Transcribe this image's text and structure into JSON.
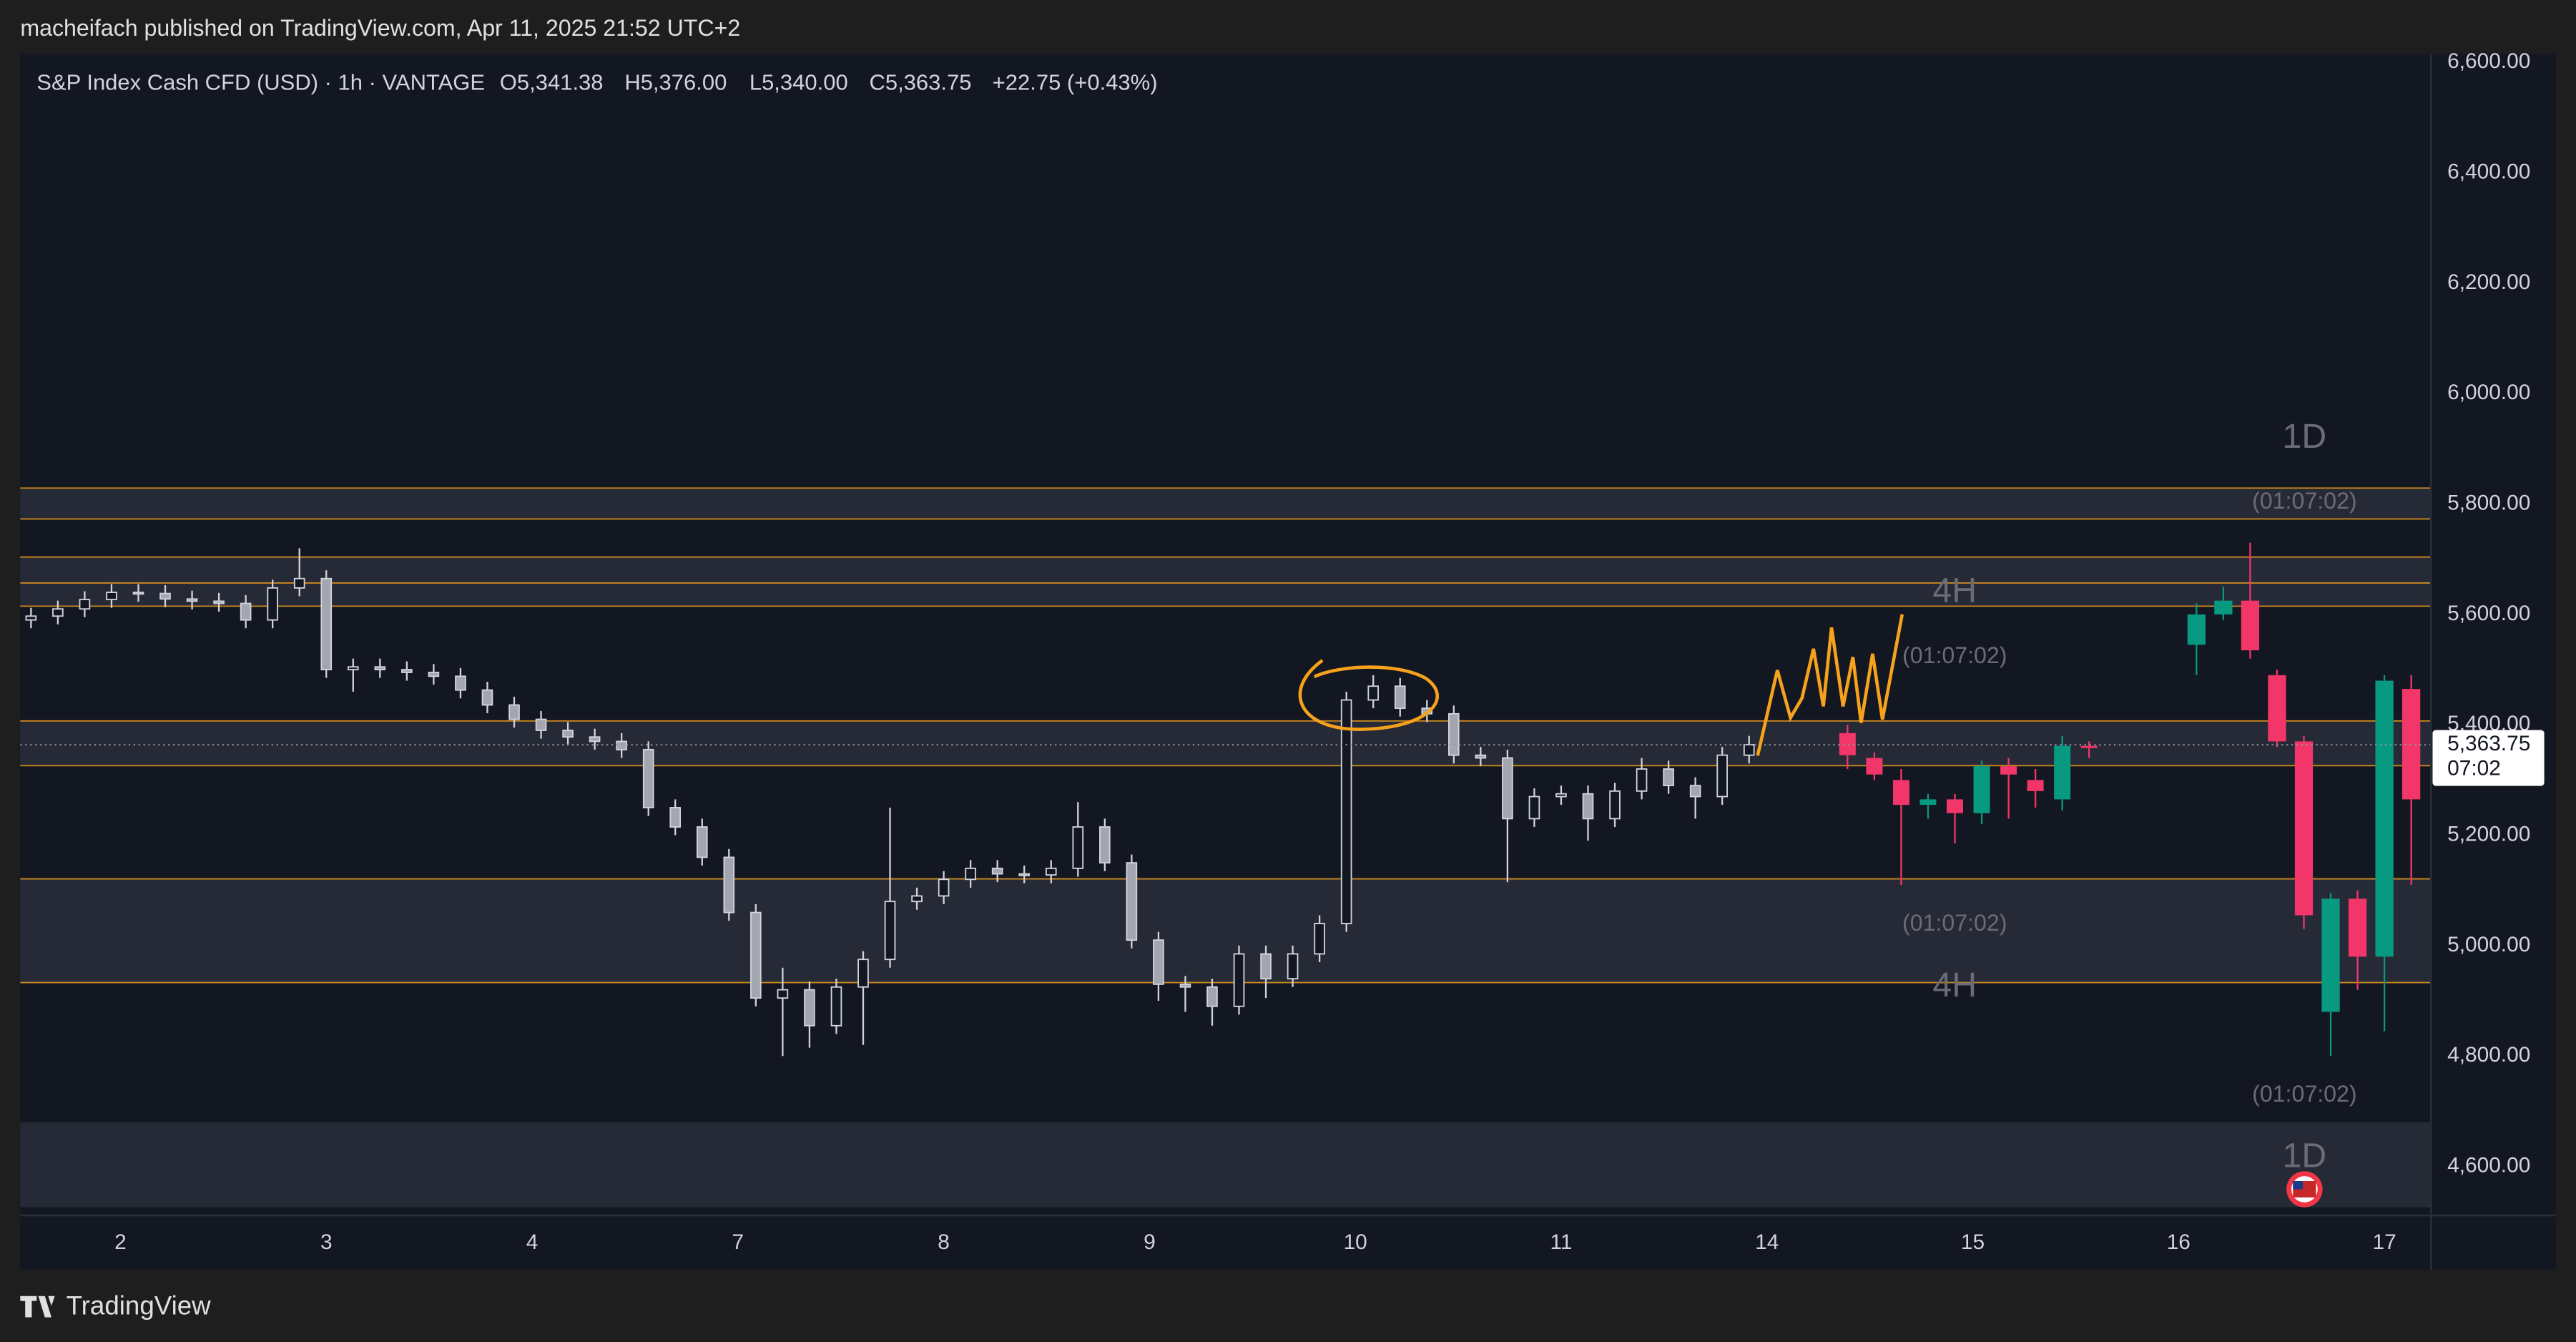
{
  "header": "macheifach published on TradingView.com, Apr 11, 2025 21:52 UTC+2",
  "footer": "TradingView",
  "chart_data": {
    "type": "candlestick",
    "symbol": "S&P Index Cash CFD (USD) · 1h · VANTAGE",
    "ohlc_labels": [
      "O5,341.38",
      "H5,376.00",
      "L5,340.00",
      "C5,363.75",
      "+22.75 (+0.43%)"
    ],
    "last_price": {
      "value": 5363.75,
      "label": "5,363.75"
    },
    "countdown": "07:02",
    "annotations": [
      "1D",
      "(01:07:02)",
      "4H",
      "(01:07:02)",
      "(01:07:02)",
      "4H",
      "(01:07:02)",
      "1D"
    ],
    "up_color": "#089981",
    "down_color": "#f23669",
    "level_color": "#f7a21b",
    "grid": false,
    "ylim": [
      4511,
      6615
    ],
    "yticks": [
      {
        "value": 4600,
        "label": "4,600.00"
      },
      {
        "value": 4800,
        "label": "4,800.00"
      },
      {
        "value": 5000,
        "label": "5,000.00"
      },
      {
        "value": 5200,
        "label": "5,200.00"
      },
      {
        "value": 5400,
        "label": "5,400.00"
      },
      {
        "value": 5600,
        "label": "5,600.00"
      },
      {
        "value": 5800,
        "label": "5,800.00"
      },
      {
        "value": 6000,
        "label": "6,000.00"
      },
      {
        "value": 6200,
        "label": "6,200.00"
      },
      {
        "value": 6400,
        "label": "6,400.00"
      },
      {
        "value": 6600,
        "label": "6,600.00"
      }
    ],
    "xlim": [
      -11.2,
      258.2
    ],
    "xticks": [
      {
        "value": 0,
        "label": "2"
      },
      {
        "value": 23,
        "label": "3"
      },
      {
        "value": 46,
        "label": "4"
      },
      {
        "value": 69,
        "label": "7"
      },
      {
        "value": 92,
        "label": "8"
      },
      {
        "value": 115,
        "label": "9"
      },
      {
        "value": 138,
        "label": "10"
      },
      {
        "value": 161,
        "label": "11"
      },
      {
        "value": 184,
        "label": "14"
      },
      {
        "value": 207,
        "label": "15"
      },
      {
        "value": 230,
        "label": "16"
      },
      {
        "value": 253,
        "label": "17"
      }
    ],
    "levels": [
      5829,
      5773,
      5704,
      5657,
      5615,
      5407,
      5326,
      5121,
      4933
    ],
    "bands": [
      [
        5773,
        5829
      ],
      [
        5615,
        5704
      ],
      [
        5326,
        5407
      ],
      [
        4933,
        5121
      ],
      [
        4526,
        4680
      ]
    ],
    "candles": {
      "x": [
        -10,
        -7,
        -4,
        -1,
        2,
        5,
        8,
        11,
        14,
        17,
        20,
        23,
        26,
        29,
        32,
        35,
        38,
        41,
        44,
        47,
        50,
        53,
        56,
        59,
        62,
        65,
        68,
        71,
        74,
        77,
        80,
        83,
        86,
        89,
        92,
        95,
        98,
        101,
        104,
        107,
        110,
        113,
        116,
        119,
        122,
        125,
        128,
        131,
        134,
        137,
        140,
        143,
        146,
        149,
        152,
        155,
        158,
        161,
        164,
        167,
        170,
        173,
        176,
        179,
        182
      ],
      "open": [
        5590,
        5597,
        5610,
        5627,
        5640,
        5638,
        5628,
        5624,
        5620,
        5590,
        5648,
        5665,
        5500,
        5505,
        5500,
        5495,
        5488,
        5463,
        5436,
        5410,
        5390,
        5378,
        5370,
        5355,
        5250,
        5215,
        5160,
        5060,
        4905,
        4920,
        4855,
        4925,
        4975,
        5080,
        5090,
        5120,
        5140,
        5130,
        5128,
        5140,
        5215,
        5150,
        5010,
        4930,
        4925,
        4890,
        4985,
        4940,
        4985,
        5040,
        5445,
        5470,
        5430,
        5420,
        5345,
        5340,
        5230,
        5270,
        5275,
        5230,
        5280,
        5320,
        5290,
        5270,
        5345
      ],
      "high": [
        5612,
        5625,
        5642,
        5655,
        5655,
        5653,
        5643,
        5639,
        5635,
        5663,
        5720,
        5680,
        5520,
        5520,
        5515,
        5510,
        5503,
        5478,
        5451,
        5425,
        5405,
        5393,
        5385,
        5370,
        5265,
        5230,
        5175,
        5075,
        4960,
        4935,
        4940,
        4990,
        5250,
        5105,
        5135,
        5155,
        5155,
        5145,
        5155,
        5260,
        5230,
        5165,
        5025,
        4945,
        4940,
        5000,
        5000,
        5000,
        5055,
        5460,
        5490,
        5485,
        5445,
        5435,
        5360,
        5355,
        5285,
        5290,
        5290,
        5295,
        5340,
        5335,
        5305,
        5360,
        5380
      ],
      "low": [
        5575,
        5582,
        5595,
        5612,
        5623,
        5613,
        5609,
        5605,
        5575,
        5575,
        5633,
        5485,
        5460,
        5485,
        5480,
        5473,
        5448,
        5421,
        5395,
        5375,
        5363,
        5355,
        5340,
        5235,
        5200,
        5145,
        5045,
        4890,
        4800,
        4815,
        4840,
        4820,
        4960,
        5065,
        5075,
        5105,
        5115,
        5113,
        5113,
        5125,
        5135,
        4995,
        4900,
        4880,
        4855,
        4875,
        4905,
        4925,
        4970,
        5025,
        5430,
        5415,
        5405,
        5330,
        5325,
        5115,
        5215,
        5255,
        5190,
        5215,
        5265,
        5275,
        5230,
        5255,
        5330
      ],
      "close": [
        5597,
        5610,
        5627,
        5640,
        5638,
        5628,
        5624,
        5620,
        5590,
        5648,
        5665,
        5500,
        5505,
        5500,
        5495,
        5488,
        5463,
        5436,
        5410,
        5390,
        5378,
        5370,
        5355,
        5250,
        5215,
        5160,
        5060,
        4905,
        4920,
        4855,
        4925,
        4975,
        5080,
        5090,
        5120,
        5140,
        5130,
        5128,
        5140,
        5215,
        5150,
        5010,
        4930,
        4925,
        4890,
        4985,
        4940,
        4985,
        5040,
        5445,
        5470,
        5430,
        5420,
        5345,
        5340,
        5230,
        5270,
        5275,
        5230,
        5280,
        5320,
        5290,
        5270,
        5345,
        5364
      ]
    },
    "candles_4h": {
      "x": [
        193,
        196,
        199,
        202,
        205,
        208,
        211,
        214,
        217,
        220
      ],
      "open": [
        5385,
        5340,
        5300,
        5255,
        5265,
        5240,
        5325,
        5300,
        5265,
        5362
      ],
      "high": [
        5400,
        5350,
        5320,
        5275,
        5275,
        5335,
        5340,
        5320,
        5380,
        5370
      ],
      "low": [
        5320,
        5300,
        5110,
        5230,
        5185,
        5220,
        5230,
        5250,
        5245,
        5340
      ],
      "close": [
        5345,
        5310,
        5255,
        5265,
        5240,
        5325,
        5310,
        5280,
        5362,
        5358
      ]
    },
    "candles_1d": {
      "x": [
        232,
        235,
        238,
        241,
        244,
        247,
        250,
        253,
        256
      ],
      "open": [
        5545,
        5600,
        5625,
        5490,
        5370,
        4880,
        5085,
        4980,
        5465
      ],
      "high": [
        5620,
        5650,
        5730,
        5500,
        5380,
        5095,
        5100,
        5490,
        5490
      ],
      "low": [
        5490,
        5590,
        5520,
        5360,
        5030,
        4800,
        4920,
        4845,
        5110
      ],
      "close": [
        5600,
        5625,
        5535,
        5370,
        5055,
        5085,
        4980,
        5480,
        5265
      ]
    }
  }
}
